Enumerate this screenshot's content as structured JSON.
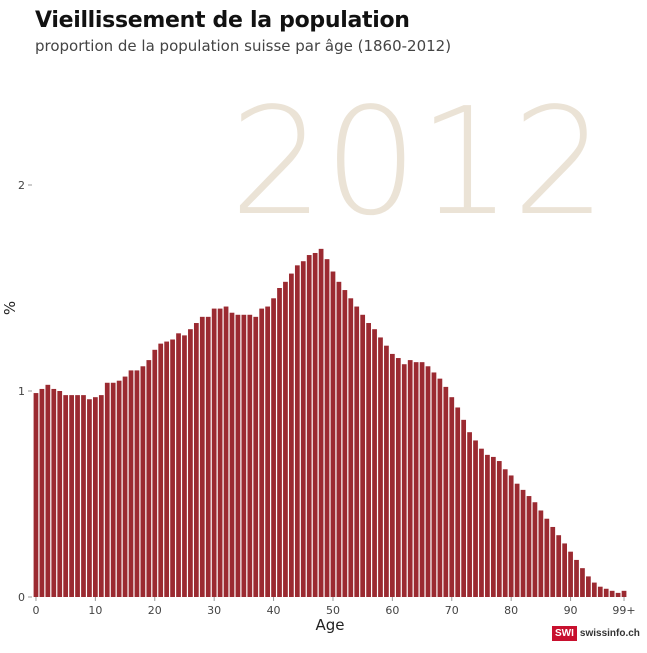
{
  "header": {
    "title": "Vieillissement de la population",
    "subtitle": "proportion de la population suisse par âge (1860-2012)"
  },
  "logo": {
    "box": "SWI",
    "text": "swissinfo.ch"
  },
  "colors": {
    "bar": "#9b2a31",
    "year_watermark": "#ebe3d6",
    "logo_red": "#c8102e"
  },
  "chart_data": {
    "type": "bar",
    "year_label": "2012",
    "xlabel": "Age",
    "ylabel": "%",
    "ylim": [
      0,
      2
    ],
    "yticks": [
      0,
      1,
      2
    ],
    "ytick_labels": [
      "0",
      "1",
      "2"
    ],
    "xticks": [
      0,
      10,
      20,
      30,
      40,
      50,
      60,
      70,
      80,
      90,
      99
    ],
    "xtick_labels": [
      "0",
      "10",
      "20",
      "30",
      "40",
      "50",
      "60",
      "70",
      "80",
      "90",
      "99+"
    ],
    "categories": [
      "0",
      "1",
      "2",
      "3",
      "4",
      "5",
      "6",
      "7",
      "8",
      "9",
      "10",
      "11",
      "12",
      "13",
      "14",
      "15",
      "16",
      "17",
      "18",
      "19",
      "20",
      "21",
      "22",
      "23",
      "24",
      "25",
      "26",
      "27",
      "28",
      "29",
      "30",
      "31",
      "32",
      "33",
      "34",
      "35",
      "36",
      "37",
      "38",
      "39",
      "40",
      "41",
      "42",
      "43",
      "44",
      "45",
      "46",
      "47",
      "48",
      "49",
      "50",
      "51",
      "52",
      "53",
      "54",
      "55",
      "56",
      "57",
      "58",
      "59",
      "60",
      "61",
      "62",
      "63",
      "64",
      "65",
      "66",
      "67",
      "68",
      "69",
      "70",
      "71",
      "72",
      "73",
      "74",
      "75",
      "76",
      "77",
      "78",
      "79",
      "80",
      "81",
      "82",
      "83",
      "84",
      "85",
      "86",
      "87",
      "88",
      "89",
      "90",
      "91",
      "92",
      "93",
      "94",
      "95",
      "96",
      "97",
      "98",
      "99+"
    ],
    "values": [
      0.99,
      1.01,
      1.03,
      1.01,
      1.0,
      0.98,
      0.98,
      0.98,
      0.98,
      0.96,
      0.97,
      0.98,
      1.04,
      1.04,
      1.05,
      1.07,
      1.1,
      1.1,
      1.12,
      1.15,
      1.2,
      1.23,
      1.24,
      1.25,
      1.28,
      1.27,
      1.3,
      1.33,
      1.36,
      1.36,
      1.4,
      1.4,
      1.41,
      1.38,
      1.37,
      1.37,
      1.37,
      1.36,
      1.4,
      1.41,
      1.45,
      1.5,
      1.53,
      1.57,
      1.61,
      1.63,
      1.66,
      1.67,
      1.69,
      1.64,
      1.58,
      1.53,
      1.49,
      1.45,
      1.41,
      1.37,
      1.33,
      1.3,
      1.26,
      1.22,
      1.18,
      1.16,
      1.13,
      1.15,
      1.14,
      1.14,
      1.12,
      1.09,
      1.06,
      1.02,
      0.97,
      0.92,
      0.86,
      0.8,
      0.76,
      0.72,
      0.69,
      0.68,
      0.66,
      0.62,
      0.59,
      0.55,
      0.52,
      0.49,
      0.46,
      0.42,
      0.38,
      0.34,
      0.3,
      0.26,
      0.22,
      0.18,
      0.14,
      0.1,
      0.07,
      0.05,
      0.04,
      0.03,
      0.02,
      0.03
    ]
  }
}
